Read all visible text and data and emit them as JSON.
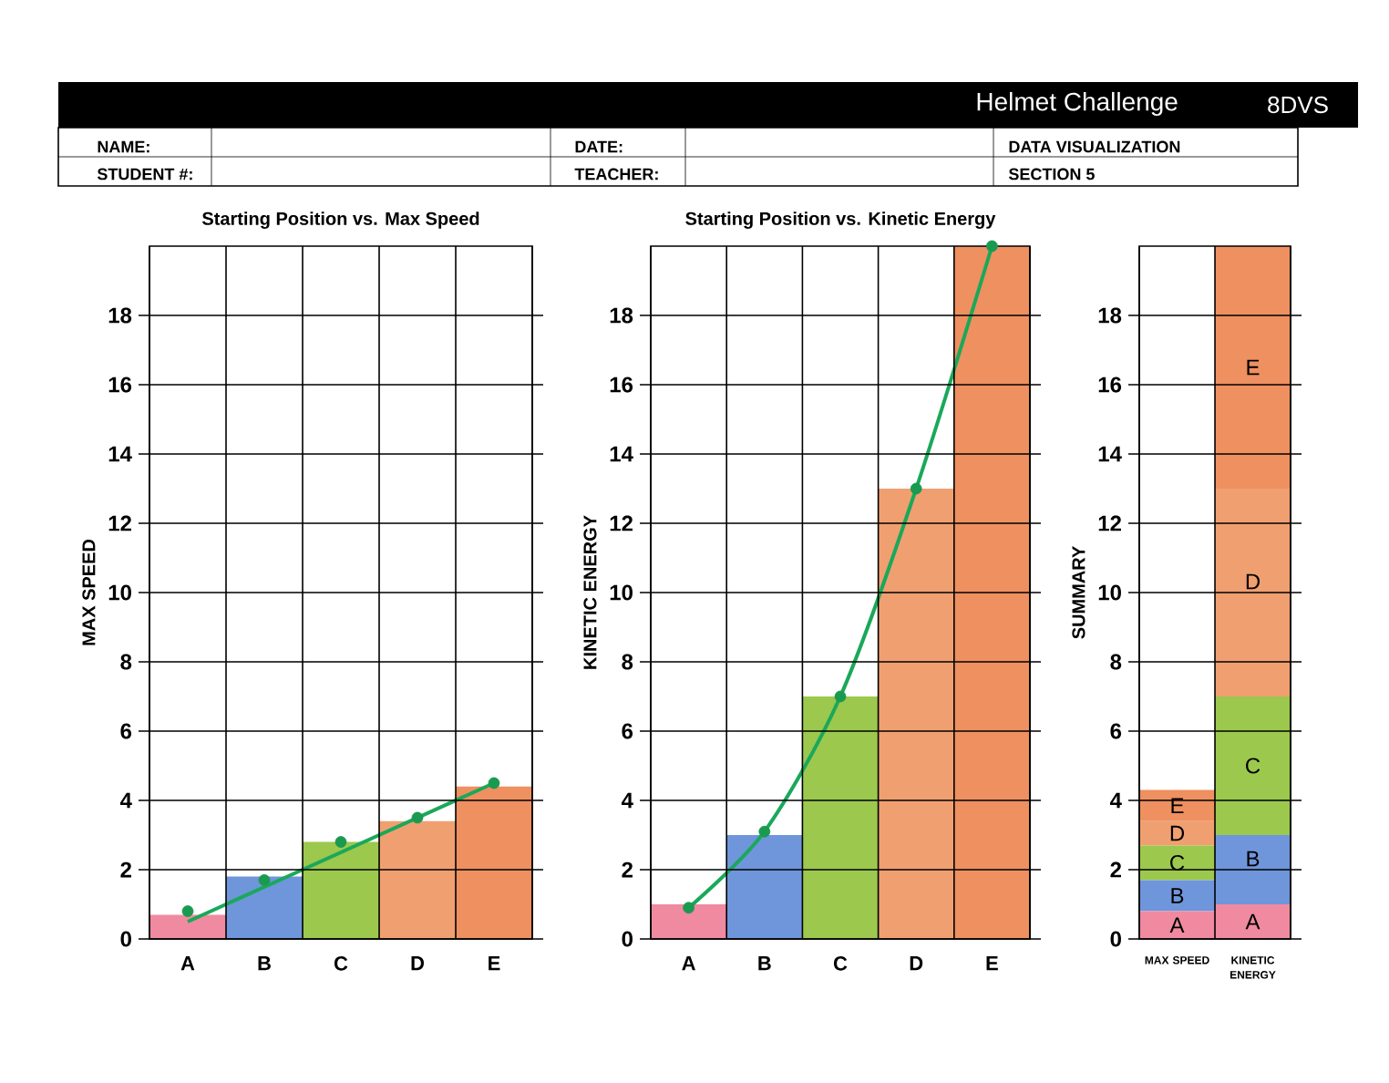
{
  "chart_data": [
    {
      "type": "other",
      "title": "Helmet Challenge",
      "annotations": [
        "8DVS",
        "NAME:",
        "STUDENT #:",
        "DATE:",
        "TEACHER:",
        "DATA VISUALIZATION",
        "SECTION 5"
      ]
    },
    {
      "type": "bar",
      "title": "Starting Position vs. Max Speed",
      "ylabel": "MAX SPEED",
      "categories": [
        "A",
        "B",
        "C",
        "D",
        "E"
      ],
      "ylim": [
        0,
        20
      ],
      "yticks": [
        0,
        2,
        4,
        6,
        8,
        10,
        12,
        14,
        16,
        18
      ],
      "grid": true,
      "series": [
        {
          "type": "bar",
          "values": [
            0.7,
            1.8,
            2.8,
            3.4,
            4.4
          ],
          "colors": [
            "#f08aa0",
            "#6f95db",
            "#9cc84e",
            "#f0a070",
            "#ee9060"
          ]
        },
        {
          "type": "scatter",
          "marker": "circle",
          "color": "#1a9a50",
          "values": [
            0.8,
            1.7,
            2.8,
            3.5,
            4.5
          ]
        },
        {
          "type": "line",
          "color": "#1aa85a",
          "values": [
            0.5,
            1.5,
            2.5,
            3.5,
            4.5
          ]
        }
      ]
    },
    {
      "type": "bar",
      "title": "Starting Position vs. Kinetic Energy",
      "ylabel": "KINETIC ENERGY",
      "categories": [
        "A",
        "B",
        "C",
        "D",
        "E"
      ],
      "ylim": [
        0,
        20
      ],
      "yticks": [
        0,
        2,
        4,
        6,
        8,
        10,
        12,
        14,
        16,
        18
      ],
      "grid": true,
      "series": [
        {
          "type": "bar",
          "values": [
            1,
            3,
            7,
            13,
            20
          ],
          "colors": [
            "#f08aa0",
            "#6f95db",
            "#9cc84e",
            "#f0a070",
            "#ee9060"
          ]
        },
        {
          "type": "scatter",
          "marker": "circle",
          "color": "#1a9a50",
          "values": [
            0.9,
            3.1,
            7,
            13,
            20
          ]
        },
        {
          "type": "line",
          "color": "#1aa85a",
          "values": [
            0.9,
            3.1,
            7,
            13,
            20
          ]
        }
      ]
    },
    {
      "type": "bar",
      "stacked": true,
      "ylabel": "SUMMARY",
      "categories": [
        "MAX SPEED",
        "KINETIC ENERGY"
      ],
      "ylim": [
        0,
        20
      ],
      "yticks": [
        0,
        2,
        4,
        6,
        8,
        10,
        12,
        14,
        16,
        18
      ],
      "grid": true,
      "series": [
        {
          "name": "A",
          "color": "#f08aa0",
          "values": [
            0.8,
            1
          ]
        },
        {
          "name": "B",
          "color": "#6f95db",
          "values": [
            0.9,
            2
          ]
        },
        {
          "name": "C",
          "color": "#9cc84e",
          "values": [
            1.0,
            4
          ]
        },
        {
          "name": "D",
          "color": "#f0a070",
          "values": [
            0.7,
            6
          ]
        },
        {
          "name": "E",
          "color": "#ee9060",
          "values": [
            0.9,
            7
          ]
        }
      ]
    }
  ]
}
